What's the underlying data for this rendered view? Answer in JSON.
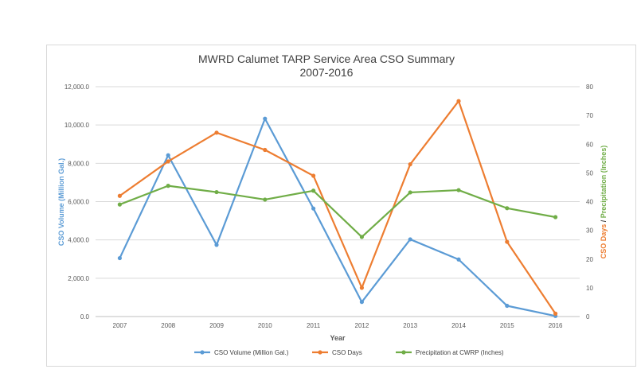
{
  "chart_data": {
    "type": "line",
    "title": "MWRD Calumet TARP Service Area CSO Summary",
    "subtitle": "2007-2016",
    "xlabel": "Year",
    "ylabel_left": "CSO Volume (Million Gal.)",
    "ylabel_right_part1": "CSO Days",
    "ylabel_right_sep": " / ",
    "ylabel_right_part2": "Precipitation (Inches)",
    "categories": [
      "2007",
      "2008",
      "2009",
      "2010",
      "2011",
      "2012",
      "2013",
      "2014",
      "2015",
      "2016"
    ],
    "ylim_left": [
      0,
      12000
    ],
    "ylim_right": [
      0,
      80
    ],
    "left_ticks": [
      "0.0",
      "2,000.0",
      "4,000.0",
      "6,000.0",
      "8,000.0",
      "10,000.0",
      "12,000.0"
    ],
    "right_ticks": [
      "0",
      "10",
      "20",
      "30",
      "40",
      "50",
      "60",
      "70",
      "80"
    ],
    "grid": true,
    "legend_position": "bottom",
    "series": [
      {
        "name": "CSO Volume (Million Gal.)",
        "axis": "left",
        "color": "#5b9bd5",
        "values": [
          3050,
          8420,
          3740,
          10330,
          5640,
          760,
          4030,
          2980,
          560,
          30
        ]
      },
      {
        "name": "CSO Days",
        "axis": "right",
        "color": "#ed7d31",
        "values": [
          42,
          54,
          64,
          58,
          49,
          10,
          53,
          75,
          26,
          1
        ]
      },
      {
        "name": "Precipitation at CWRP (Inches)",
        "axis": "right",
        "color": "#70ad47",
        "values": [
          39,
          45.5,
          43.3,
          40.7,
          43.8,
          27.7,
          43.2,
          44,
          37.7,
          34.6
        ]
      }
    ]
  }
}
